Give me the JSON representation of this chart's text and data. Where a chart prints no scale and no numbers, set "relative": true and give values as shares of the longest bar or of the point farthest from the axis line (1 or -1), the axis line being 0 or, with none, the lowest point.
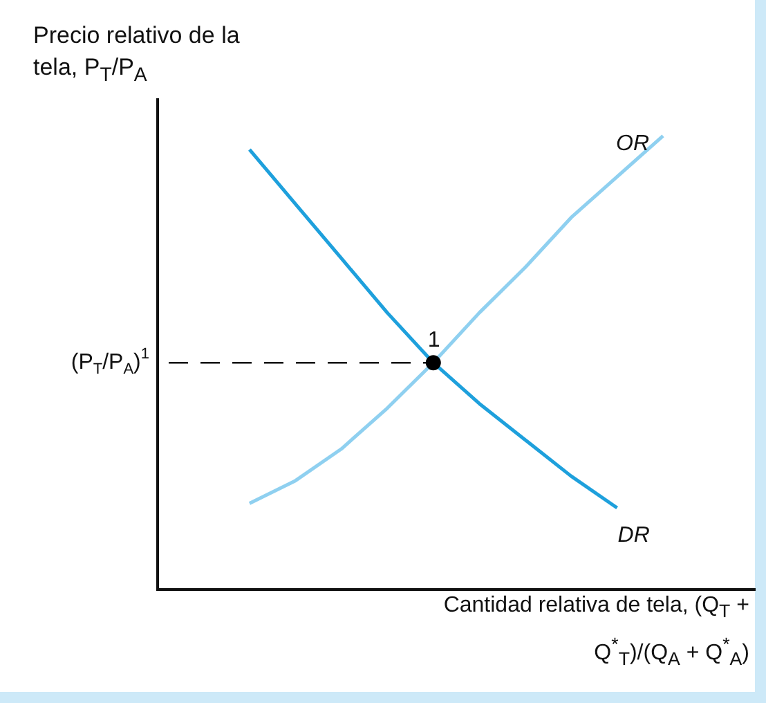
{
  "chart_data": {
    "type": "line",
    "title": "Precio relativo de la tela, P$_{T}$/P$_{A}$",
    "xlabel": "Cantidad relativa de tela, (Q$_{T}$ + Q$^{*}$$_{T}$)/(Q$_{A}$ + Q$^{*}$$_{A}$)",
    "relative": true,
    "categories": [
      null,
      null,
      null,
      null,
      null,
      null,
      null,
      null,
      null,
      null,
      null,
      null,
      null,
      null
    ],
    "series": [
      {
        "name": "OR",
        "color": "#8fd0f0",
        "values": [
          null,
          null,
          0.19,
          0.24,
          0.31,
          0.4,
          0.5,
          0.61,
          0.71,
          0.82,
          0.91,
          1.0,
          null,
          null
        ]
      },
      {
        "name": "DR",
        "color": "#1ea0dc",
        "values": [
          null,
          null,
          0.97,
          0.85,
          0.73,
          0.61,
          0.5,
          0.41,
          0.33,
          0.25,
          0.18,
          null,
          null,
          null
        ]
      }
    ],
    "ref_lines": [
      {
        "axis": "y",
        "value": 0.5,
        "label": "(P$_{T}$/P$_{A}$)$^{1}$",
        "color": "#000000",
        "line_style": "dashed"
      }
    ],
    "annotations": [
      "1"
    ],
    "marker": "none",
    "grid": false,
    "legend": false
  }
}
